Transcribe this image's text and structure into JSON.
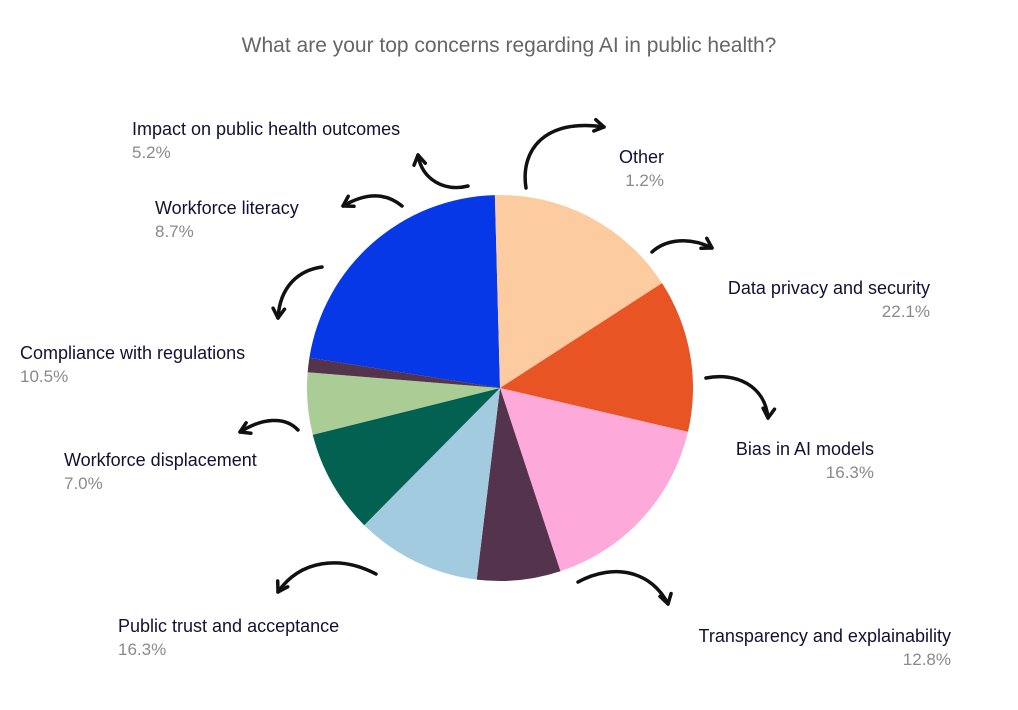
{
  "chart_data": {
    "type": "pie",
    "title": "What are your top concerns regarding AI in public health?",
    "slices": [
      {
        "label": "Data privacy and  security",
        "value_label": "22.1%",
        "value": 22.1,
        "color": "#0638e8"
      },
      {
        "label": "Bias in AI models",
        "value_label": "16.3%",
        "value": 16.3,
        "color": "#fdcba0"
      },
      {
        "label": "Transparency and explainability",
        "value_label": "12.8%",
        "value": 12.8,
        "color": "#e85424"
      },
      {
        "label": "Public trust and acceptance",
        "value_label": "16.3%",
        "value": 16.3,
        "color": "#fdaadb"
      },
      {
        "label": "Workforce displacement",
        "value_label": "7.0%",
        "value": 7.0,
        "color": "#54344d"
      },
      {
        "label": "Compliance with regulations",
        "value_label": "10.5%",
        "value": 10.5,
        "color": "#a2cbdf"
      },
      {
        "label": "Workforce literacy",
        "value_label": "8.7%",
        "value": 8.7,
        "color": "#036151"
      },
      {
        "label": "Impact on public health outcomes",
        "value_label": "5.2%",
        "value": 5.2,
        "color": "#aacd96"
      },
      {
        "label": "Other",
        "value_label": "1.2%",
        "value": 1.2,
        "color": "#54344d"
      }
    ]
  }
}
